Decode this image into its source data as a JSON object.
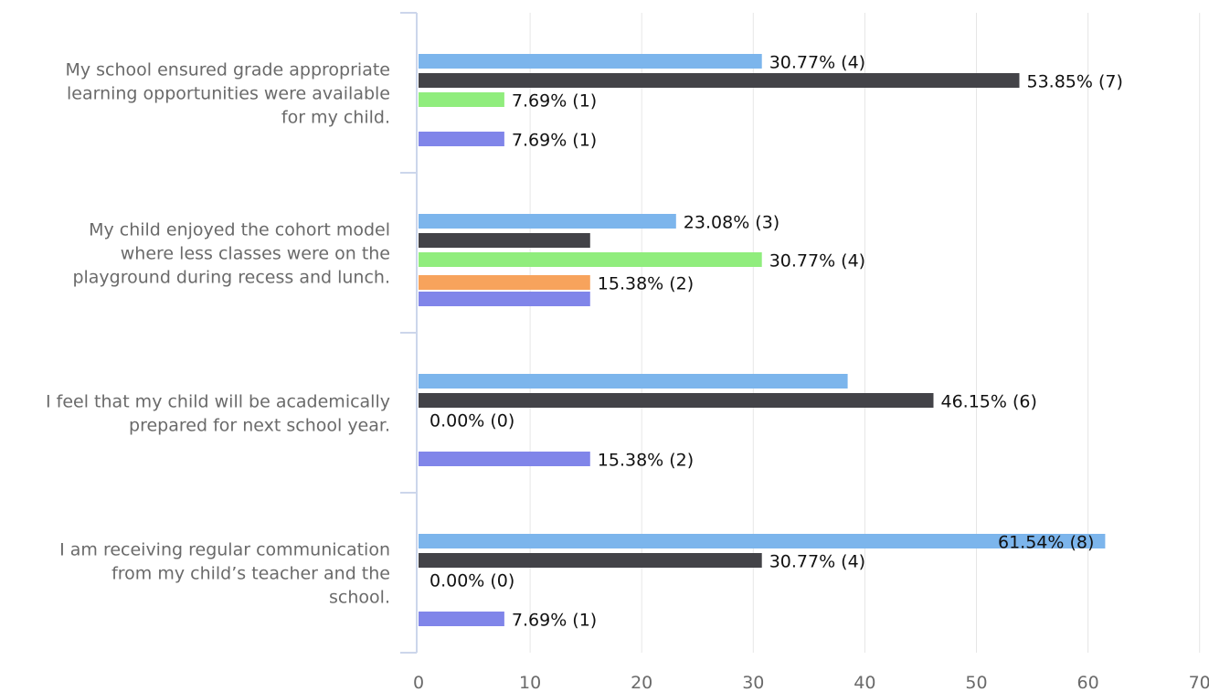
{
  "chart_data": {
    "type": "bar",
    "orientation": "horizontal",
    "xlim": [
      0,
      70
    ],
    "xticks": [
      0,
      10,
      20,
      30,
      40,
      50,
      60,
      70
    ],
    "tick_labels": [
      "0",
      "10",
      "20",
      "30",
      "40",
      "50",
      "60",
      "70"
    ],
    "grid": "vertical",
    "categories": [
      "My school ensured grade appropriate learning opportunities were available for my child.",
      "My child enjoyed the cohort model where less classes were on the playground during recess and lunch.",
      "I feel that my child will be academically prepared for next school year.",
      "I am receiving regular communication from my child’s teacher and the school."
    ],
    "category_lines": [
      [
        "My school ensured grade appropriate",
        "learning opportunities were available",
        "for my child."
      ],
      [
        "My child enjoyed the cohort model",
        "where less classes were on the",
        "playground during recess and lunch."
      ],
      [
        "I feel that my child will be academically",
        "prepared for next school year."
      ],
      [
        "I am receiving regular communication",
        "from my child’s teacher and the",
        "school."
      ]
    ],
    "series": [
      {
        "color": "#7cb5ec",
        "values": [
          30.77,
          23.08,
          38.46,
          61.54
        ],
        "labels": [
          "30.77% (4)",
          "23.08% (3)",
          "",
          "61.54% (8)"
        ]
      },
      {
        "color": "#434348",
        "values": [
          53.85,
          15.38,
          46.15,
          30.77
        ],
        "labels": [
          "53.85% (7)",
          "",
          "46.15% (6)",
          "30.77% (4)"
        ]
      },
      {
        "color": "#90ed7d",
        "values": [
          7.69,
          30.77,
          0,
          0
        ],
        "labels": [
          "7.69% (1)",
          "30.77% (4)",
          "0.00% (0)",
          "0.00% (0)"
        ]
      },
      {
        "color": "#f7a35c",
        "values": [
          0,
          15.38,
          0,
          0
        ],
        "labels": [
          "",
          "15.38% (2)",
          "",
          ""
        ]
      },
      {
        "color": "#8085e9",
        "values": [
          7.69,
          15.38,
          15.38,
          7.69
        ],
        "labels": [
          "7.69% (1)",
          "",
          "15.38% (2)",
          "7.69% (1)"
        ]
      }
    ]
  }
}
